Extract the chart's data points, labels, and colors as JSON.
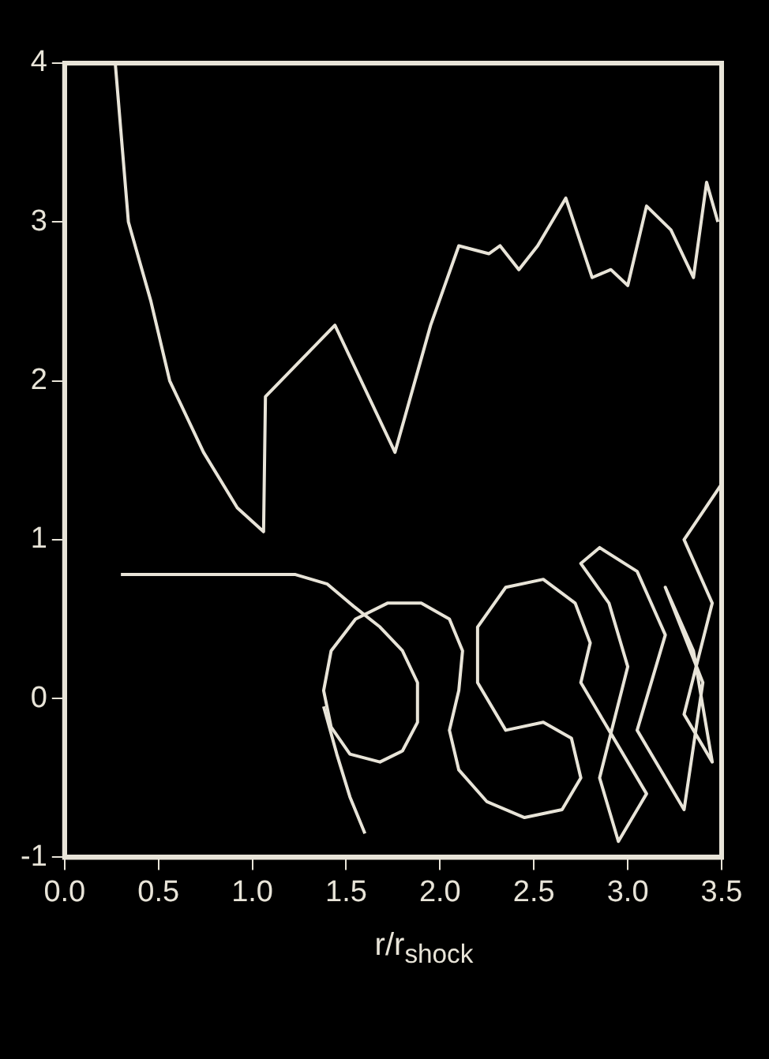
{
  "chart_data": {
    "type": "line",
    "xlabel": "r/r$_{shock}$",
    "xlim": [
      0,
      3.5
    ],
    "ylim": [
      -1,
      4
    ],
    "xticks": [
      {
        "value": 0,
        "label": "0.0"
      },
      0.5,
      {
        "value": 1,
        "label": "1.0"
      },
      1.5,
      {
        "value": 2,
        "label": "2.0"
      },
      2.5,
      {
        "value": 3,
        "label": "3.0"
      },
      3.5
    ],
    "yticks": [
      -1,
      0,
      1,
      2,
      3,
      4
    ],
    "grid": false,
    "legend": false,
    "marker": "none",
    "line_style": "solid",
    "series": [
      {
        "color": "#e8e4d8",
        "x": [
          0.27,
          0.34,
          0.46,
          0.56,
          0.74,
          0.92,
          1.06,
          1.07,
          1.44,
          1.76,
          1.95,
          2.1,
          2.26,
          2.32,
          2.42,
          2.52,
          2.67,
          2.81,
          2.91,
          3.0,
          3.1,
          3.23,
          3.35,
          3.42,
          3.48
        ],
        "values": [
          4,
          3,
          2.5,
          2.0,
          1.55,
          1.2,
          1.05,
          1.9,
          2.35,
          1.55,
          2.35,
          2.85,
          2.8,
          2.85,
          2.7,
          2.85,
          3.15,
          2.65,
          2.7,
          2.6,
          3.1,
          2.95,
          2.65,
          3.25,
          3.0
        ]
      },
      {
        "color": "#e8e4d8",
        "x": [
          0.3,
          0.8,
          1.23,
          1.4,
          1.54,
          1.68,
          1.8,
          1.88,
          1.88,
          1.8,
          1.68,
          1.52,
          1.42,
          1.38,
          1.42,
          1.55,
          1.72,
          1.9,
          2.05,
          2.12,
          2.1,
          2.05,
          2.1,
          2.25,
          2.45,
          2.65,
          2.75,
          2.7,
          2.55,
          2.35,
          2.2,
          2.2,
          2.35,
          2.55,
          2.72,
          2.8,
          2.75,
          2.9,
          3.1,
          2.95,
          2.85,
          3.0,
          2.9,
          2.75,
          2.85,
          3.05,
          3.2,
          3.05,
          3.3,
          3.4,
          3.2,
          3.35,
          3.45,
          3.3,
          3.45,
          3.3,
          3.5
        ],
        "values": [
          0.78,
          0.78,
          0.78,
          0.72,
          0.58,
          0.45,
          0.3,
          0.1,
          -0.15,
          -0.33,
          -0.4,
          -0.35,
          -0.18,
          0.05,
          0.3,
          0.5,
          0.6,
          0.6,
          0.5,
          0.3,
          0.05,
          -0.2,
          -0.45,
          -0.65,
          -0.75,
          -0.7,
          -0.5,
          -0.25,
          -0.15,
          -0.2,
          0.1,
          0.45,
          0.7,
          0.75,
          0.6,
          0.35,
          0.1,
          -0.2,
          -0.6,
          -0.9,
          -0.5,
          0.2,
          0.6,
          0.85,
          0.95,
          0.8,
          0.4,
          -0.2,
          -0.7,
          0.1,
          0.7,
          0.3,
          -0.4,
          -0.1,
          0.6,
          1.0,
          1.35
        ]
      },
      {
        "color": "#e8e4d8",
        "x": [
          1.38,
          1.45,
          1.52,
          1.6
        ],
        "values": [
          -0.05,
          -0.35,
          -0.62,
          -0.85
        ]
      }
    ]
  }
}
